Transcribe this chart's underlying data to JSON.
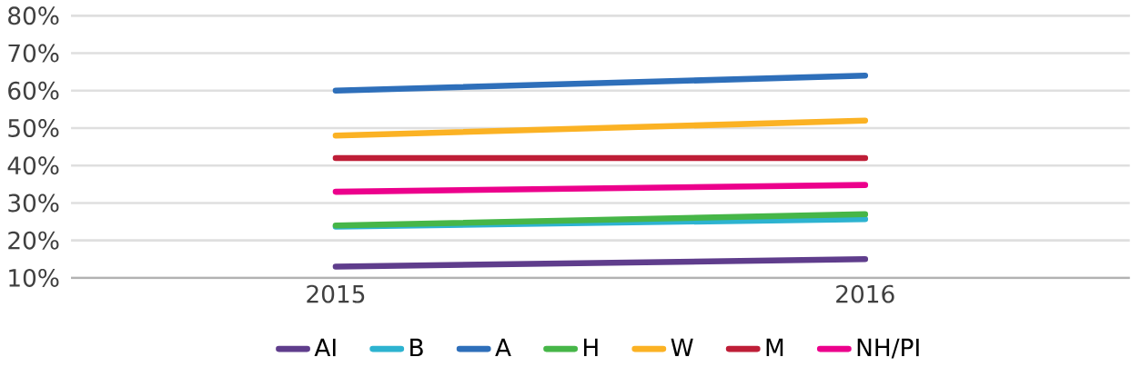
{
  "chart_data": {
    "type": "line",
    "categories": [
      "2015",
      "2016"
    ],
    "series": [
      {
        "name": "AI",
        "color": "#5f3d8c",
        "values": [
          13,
          15
        ]
      },
      {
        "name": "B",
        "color": "#2db3d0",
        "values": [
          23.7,
          25.7
        ]
      },
      {
        "name": "A",
        "color": "#2e6fba",
        "values": [
          60,
          64
        ]
      },
      {
        "name": "H",
        "color": "#46b648",
        "values": [
          24,
          27
        ]
      },
      {
        "name": "W",
        "color": "#fbb224",
        "values": [
          48,
          52
        ]
      },
      {
        "name": "M",
        "color": "#be1e37",
        "values": [
          42,
          42
        ]
      },
      {
        "name": "NH/PI",
        "color": "#ec008c",
        "values": [
          33,
          34.8
        ]
      }
    ],
    "ylim": [
      10,
      80
    ],
    "yticks": [
      {
        "value": 10,
        "label": "10%"
      },
      {
        "value": 20,
        "label": "20%"
      },
      {
        "value": 30,
        "label": "30%"
      },
      {
        "value": 40,
        "label": "40%"
      },
      {
        "value": 50,
        "label": "50%"
      },
      {
        "value": 60,
        "label": "60%"
      },
      {
        "value": 70,
        "label": "70%"
      },
      {
        "value": 80,
        "label": "80%"
      }
    ],
    "grid": "y",
    "legend": "bottom",
    "marker": "none",
    "line_style": "solid"
  }
}
